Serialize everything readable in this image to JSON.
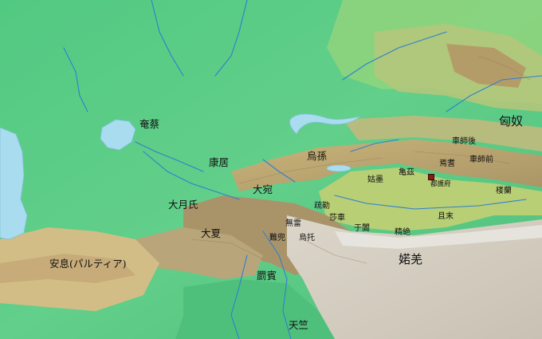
{
  "colors": {
    "lowland": "#57cf86",
    "steppe": "#86d07e",
    "highland": "#c9b97a",
    "mountain": "#b9a882",
    "plateau": "#d8d3c8",
    "snow": "#f2f2f2",
    "water": "#a8dcee",
    "river": "#2f7fd0",
    "marker": "#8b1a1a"
  },
  "labels": {
    "xiongnu": "匈奴",
    "che_shi_hou": "車師後",
    "che_shi_qian": "車師前",
    "yanqi": "焉耆",
    "guizi": "亀茲",
    "duhufu": "都護府",
    "loulan": "楼蘭",
    "qiemo": "且末",
    "wusun": "烏孫",
    "gumo": "姑墨",
    "kangju": "康居",
    "yancai": "奄蔡",
    "dayuan": "大宛",
    "shule": "疏勒",
    "dayuezhi": "大月氏",
    "wulei": "無雷",
    "shache": "莎車",
    "yutian": "于闐",
    "jingjue": "精絶",
    "daxia": "大夏",
    "nandou": "難兜",
    "wutuo": "烏托",
    "anxi": "安息(パルティア)",
    "jibin": "罽賓",
    "ruoqiang": "婼羌",
    "tianzhu": "天竺"
  }
}
